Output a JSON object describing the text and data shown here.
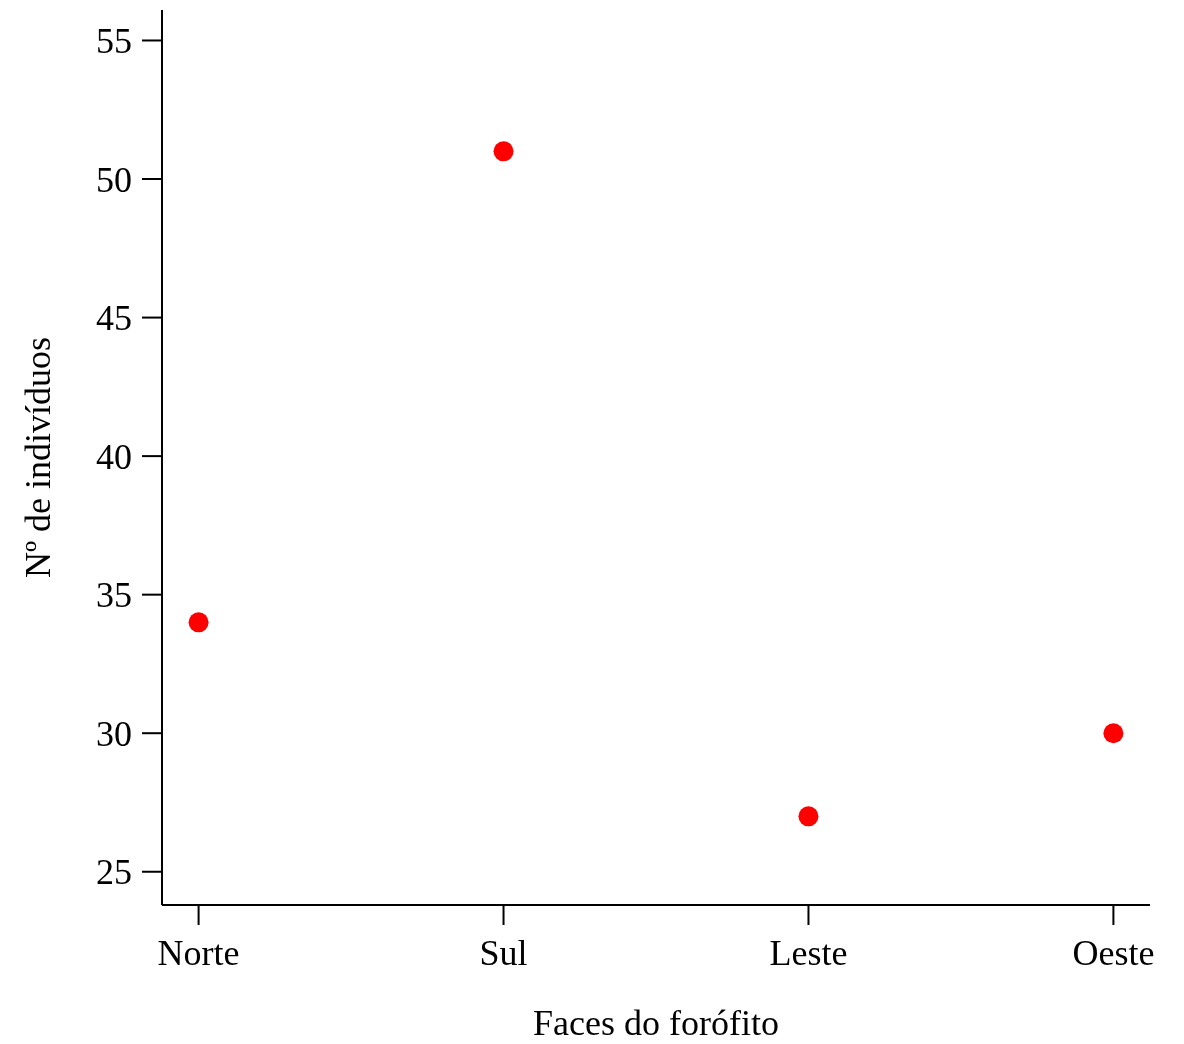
{
  "chart_data": {
    "type": "scatter",
    "xlabel": "Faces do forófito",
    "ylabel": "Nº de indivíduos",
    "categories": [
      "Norte",
      "Sul",
      "Leste",
      "Oeste"
    ],
    "series": [
      {
        "color": "#ff0000",
        "values": [
          34,
          51,
          27,
          30
        ]
      }
    ],
    "ylim": [
      23.8,
      56.1
    ],
    "yticks": [
      25,
      30,
      35,
      40,
      45,
      50,
      55
    ],
    "grid": false,
    "marker": "circle"
  }
}
